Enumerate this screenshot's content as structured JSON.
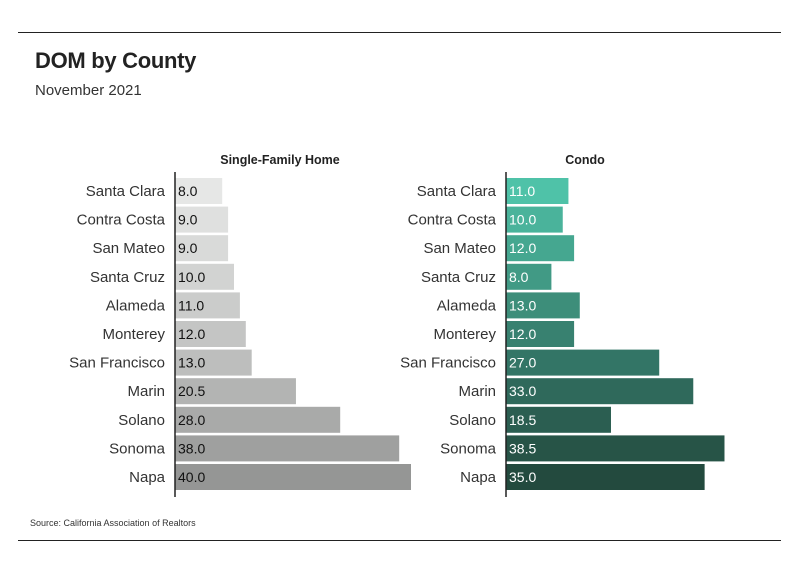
{
  "header": {
    "title": "DOM by County",
    "subtitle": "November 2021"
  },
  "footer": {
    "source": "Source:  California Association of Realtors"
  },
  "chart_data": [
    {
      "type": "bar",
      "orientation": "horizontal",
      "title": "Single-Family Home",
      "categories": [
        "Santa Clara",
        "Contra Costa",
        "San Mateo",
        "Santa Cruz",
        "Alameda",
        "Monterey",
        "San Francisco",
        "Marin",
        "Solano",
        "Sonoma",
        "Napa"
      ],
      "values": [
        8.0,
        9.0,
        9.0,
        10.0,
        11.0,
        12.0,
        13.0,
        20.5,
        28.0,
        38.0,
        40.0
      ],
      "value_labels": [
        "8.0",
        "9.0",
        "9.0",
        "10.0",
        "11.0",
        "12.0",
        "13.0",
        "20.5",
        "28.0",
        "38.0",
        "40.0"
      ],
      "xlim": [
        0,
        40
      ],
      "colors": [
        "#e6e7e6",
        "#dfe0df",
        "#d9dad9",
        "#d2d3d2",
        "#cbcccb",
        "#c4c5c4",
        "#bdbebd",
        "#b3b4b3",
        "#a9aaa9",
        "#9fa09f",
        "#959695"
      ]
    },
    {
      "type": "bar",
      "orientation": "horizontal",
      "title": "Condo",
      "categories": [
        "Santa Clara",
        "Contra Costa",
        "San Mateo",
        "Santa Cruz",
        "Alameda",
        "Monterey",
        "San Francisco",
        "Marin",
        "Solano",
        "Sonoma",
        "Napa"
      ],
      "values": [
        11.0,
        10.0,
        12.0,
        8.0,
        13.0,
        12.0,
        27.0,
        33.0,
        18.5,
        38.5,
        35.0
      ],
      "value_labels": [
        "11.0",
        "10.0",
        "12.0",
        "8.0",
        "13.0",
        "12.0",
        "27.0",
        "33.0",
        "18.5",
        "38.5",
        "35.0"
      ],
      "xlim": [
        0,
        40
      ],
      "colors": [
        "#4fc2a8",
        "#4ab39b",
        "#45a790",
        "#419a85",
        "#3d8e7a",
        "#388170",
        "#337566",
        "#2f695b",
        "#2b5e51",
        "#275447",
        "#234a3e"
      ]
    }
  ]
}
